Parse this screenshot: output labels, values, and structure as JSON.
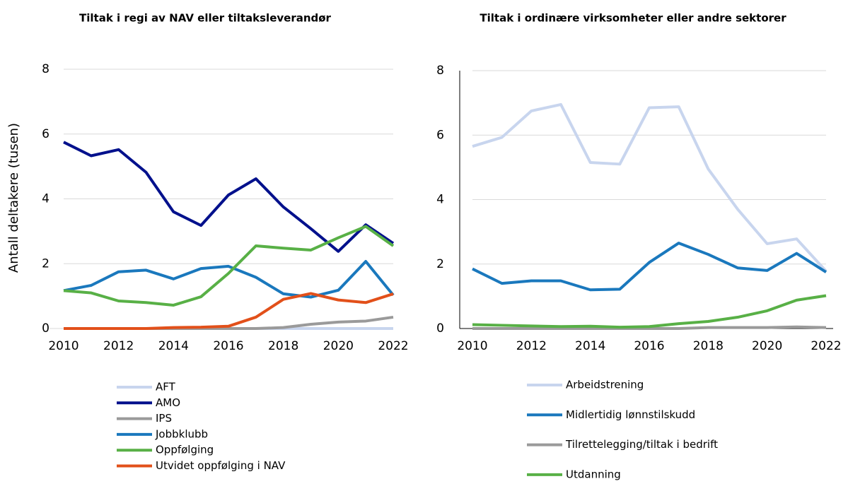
{
  "chart_data": [
    {
      "type": "line",
      "title": "Tiltak i regi av NAV eller tiltaksleverandør",
      "y_label": "Antall deltakere (tusen)",
      "x": [
        2010,
        2011,
        2012,
        2013,
        2014,
        2015,
        2016,
        2017,
        2018,
        2019,
        2020,
        2021,
        2022
      ],
      "xlim": [
        2010,
        2022
      ],
      "xticks": [
        2010,
        2012,
        2014,
        2016,
        2018,
        2020,
        2022
      ],
      "ylim": [
        0,
        8
      ],
      "yticks": [
        0,
        2,
        4,
        6,
        8
      ],
      "grid": true,
      "series": [
        {
          "name": "AFT",
          "color": "#c8d5ee",
          "values": [
            0,
            0,
            0,
            0,
            0,
            0,
            0,
            0,
            0,
            0,
            0,
            0,
            0
          ]
        },
        {
          "name": "AMO",
          "color": "#00108c",
          "values": [
            5.75,
            5.33,
            5.52,
            4.82,
            3.6,
            3.18,
            4.12,
            4.62,
            3.75,
            3.08,
            2.38,
            3.2,
            2.63
          ]
        },
        {
          "name": "IPS",
          "color": "#9a9a9a",
          "values": [
            0,
            0,
            0,
            0,
            0,
            0,
            0,
            0,
            0.03,
            0.13,
            0.2,
            0.23,
            0.35
          ]
        },
        {
          "name": "Jobbklubb",
          "color": "#1a78bd",
          "values": [
            1.17,
            1.33,
            1.75,
            1.8,
            1.53,
            1.85,
            1.92,
            1.58,
            1.07,
            0.97,
            1.18,
            2.07,
            1.03
          ]
        },
        {
          "name": "Oppfølging",
          "color": "#58b046",
          "values": [
            1.17,
            1.1,
            0.85,
            0.8,
            0.72,
            0.98,
            1.7,
            2.55,
            2.48,
            2.42,
            2.8,
            3.15,
            2.55
          ]
        },
        {
          "name": "Utvidet oppfølging i NAV",
          "color": "#e2501a",
          "values": [
            0,
            0,
            0,
            0,
            0.03,
            0.04,
            0.07,
            0.35,
            0.9,
            1.08,
            0.88,
            0.8,
            1.07
          ]
        }
      ]
    },
    {
      "type": "line",
      "title": "Tiltak i ordinære virksomheter eller andre sektorer",
      "x": [
        2010,
        2011,
        2012,
        2013,
        2014,
        2015,
        2016,
        2017,
        2018,
        2019,
        2020,
        2021,
        2022
      ],
      "xlim": [
        2010,
        2022
      ],
      "xticks": [
        2010,
        2012,
        2014,
        2016,
        2018,
        2020,
        2022
      ],
      "ylim": [
        0,
        8
      ],
      "yticks": [
        0,
        2,
        4,
        6,
        8
      ],
      "grid": true,
      "axis_lines": true,
      "series": [
        {
          "name": "Arbeidstrening",
          "color": "#c8d5ee",
          "values": [
            5.65,
            5.93,
            6.75,
            6.95,
            5.15,
            5.1,
            6.85,
            6.88,
            4.95,
            3.7,
            2.63,
            2.78,
            1.78
          ]
        },
        {
          "name": "Midlertidig lønnstilskudd",
          "color": "#1a78bd",
          "values": [
            1.85,
            1.4,
            1.48,
            1.48,
            1.2,
            1.22,
            2.05,
            2.65,
            2.3,
            1.88,
            1.8,
            2.33,
            1.75
          ]
        },
        {
          "name": "Tilrettelegging/tiltak i bedrift",
          "color": "#9a9a9a",
          "values": [
            0,
            0,
            0,
            0,
            0,
            0,
            0,
            0,
            0.03,
            0.03,
            0.03,
            0.05,
            0.03
          ]
        },
        {
          "name": "Utdanning",
          "color": "#58b046",
          "values": [
            0.12,
            0.1,
            0.08,
            0.06,
            0.07,
            0.04,
            0.06,
            0.15,
            0.22,
            0.35,
            0.55,
            0.88,
            1.02
          ]
        }
      ]
    }
  ]
}
